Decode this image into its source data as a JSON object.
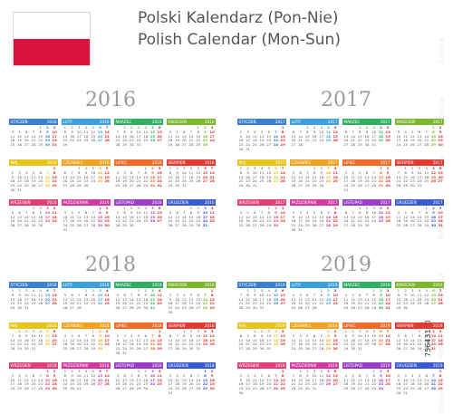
{
  "flag": {
    "top": "#ffffff",
    "bottom": "#dc143c"
  },
  "title_pl": "Polski Kalendarz (Pon-Nie)",
  "title_en": "Polish Calendar (Mon-Sun)",
  "stock_id": "75643180",
  "watermark": "fotolia",
  "years": [
    {
      "label": "2016",
      "value": 2016
    },
    {
      "label": "2017",
      "value": 2017
    },
    {
      "label": "2018",
      "value": 2018
    },
    {
      "label": "2019",
      "value": 2019
    }
  ],
  "months": [
    {
      "name": "STYCZEŃ",
      "color": "#3a7fd0"
    },
    {
      "name": "LUTY",
      "color": "#3aa0e0"
    },
    {
      "name": "MARZEC",
      "color": "#2fb060"
    },
    {
      "name": "KWIECIEŃ",
      "color": "#7ab82e"
    },
    {
      "name": "MAJ",
      "color": "#e6c41a"
    },
    {
      "name": "CZERWIEC",
      "color": "#f0a21e"
    },
    {
      "name": "LIPIEC",
      "color": "#f06a28"
    },
    {
      "name": "SIERPIEŃ",
      "color": "#e23a30"
    },
    {
      "name": "WRZESIEŃ",
      "color": "#e0407a"
    },
    {
      "name": "PAŹDZIERNIK",
      "color": "#d03aa0"
    },
    {
      "name": "LISTOPAD",
      "color": "#9a3ec8"
    },
    {
      "name": "GRUDZIEŃ",
      "color": "#3a5ad0"
    }
  ]
}
